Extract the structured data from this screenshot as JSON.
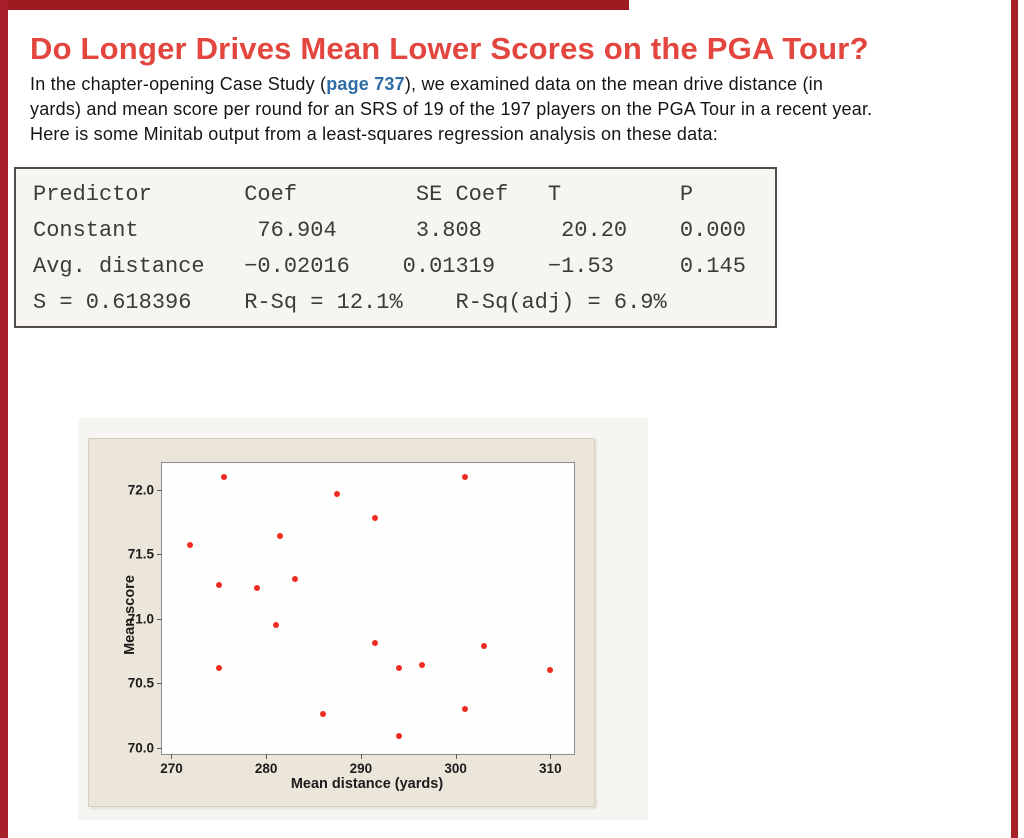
{
  "header": {
    "title": "Do Longer Drives Mean Lower Scores on the PGA Tour?"
  },
  "intro": {
    "line1_before": "In the chapter-opening Case Study (",
    "line1_link": "page 737",
    "line1_after": "), we examined data on the mean drive distance (in",
    "line2": "yards) and mean score per round for an SRS of 19 of the 197 players on the PGA Tour in a recent year.",
    "line3": "Here is some Minitab output from a least-squares regression analysis on these data:"
  },
  "minitab": {
    "lines": [
      "Predictor       Coef         SE Coef   T         P",
      "Constant         76.904      3.808      20.20    0.000",
      "Avg. distance   −0.02016    0.01319    −1.53     0.145",
      "S = 0.618396    R-Sq = 12.1%    R-Sq(adj) = 6.9%"
    ]
  },
  "chart_data": {
    "type": "scatter",
    "title": "",
    "xlabel": "Mean distance (yards)",
    "ylabel": "Mean score",
    "xlim": [
      269,
      312.5
    ],
    "ylim": [
      69.95,
      72.21
    ],
    "xticks": [
      270,
      280,
      290,
      300,
      310
    ],
    "xtick_labels": [
      "270",
      "280",
      "290",
      "300",
      "310"
    ],
    "yticks": [
      70.0,
      70.5,
      71.0,
      71.5,
      72.0
    ],
    "ytick_labels": [
      "70.0",
      "70.5",
      "71.0",
      "71.5",
      "72.0"
    ],
    "grid": false,
    "legend": "none",
    "marker": "circle",
    "points": [
      [
        272.0,
        71.57
      ],
      [
        275.5,
        72.1
      ],
      [
        275.0,
        71.26
      ],
      [
        275.0,
        70.62
      ],
      [
        279.0,
        71.24
      ],
      [
        281.0,
        70.95
      ],
      [
        281.5,
        71.64
      ],
      [
        283.0,
        71.31
      ],
      [
        286.0,
        70.26
      ],
      [
        287.5,
        71.97
      ],
      [
        291.5,
        71.78
      ],
      [
        291.5,
        70.81
      ],
      [
        294.0,
        70.62
      ],
      [
        294.0,
        70.09
      ],
      [
        296.5,
        70.64
      ],
      [
        301.0,
        72.1
      ],
      [
        301.0,
        70.3
      ],
      [
        303.0,
        70.79
      ],
      [
        310.0,
        70.6
      ]
    ]
  },
  "colors": {
    "accent_red": "#e2463e",
    "bar_red": "#9e1c21",
    "border_red": "#a8202a",
    "link_blue": "#2e6ca5",
    "point_red": "#ee2c22",
    "panel_beige": "#ebe6d9"
  }
}
